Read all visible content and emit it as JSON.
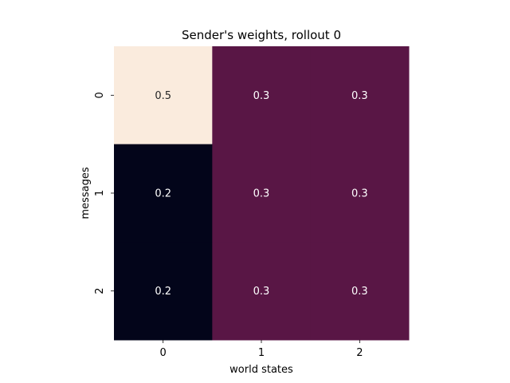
{
  "chart_data": {
    "type": "heatmap",
    "title": "Sender's weights, rollout 0",
    "xlabel": "world states",
    "ylabel": "messages",
    "x_categories": [
      "0",
      "1",
      "2"
    ],
    "y_categories": [
      "0",
      "1",
      "2"
    ],
    "values": [
      [
        0.5,
        0.3,
        0.3
      ],
      [
        0.2,
        0.3,
        0.3
      ],
      [
        0.2,
        0.3,
        0.3
      ]
    ],
    "value_labels": [
      [
        "0.5",
        "0.3",
        "0.3"
      ],
      [
        "0.2",
        "0.3",
        "0.3"
      ],
      [
        "0.2",
        "0.3",
        "0.3"
      ]
    ],
    "colorbar": false,
    "grid": false,
    "colormap": {
      "low": "#03051a",
      "mid": "#841e5a",
      "high": "#faebdd"
    },
    "label_color": "#ffffff"
  }
}
